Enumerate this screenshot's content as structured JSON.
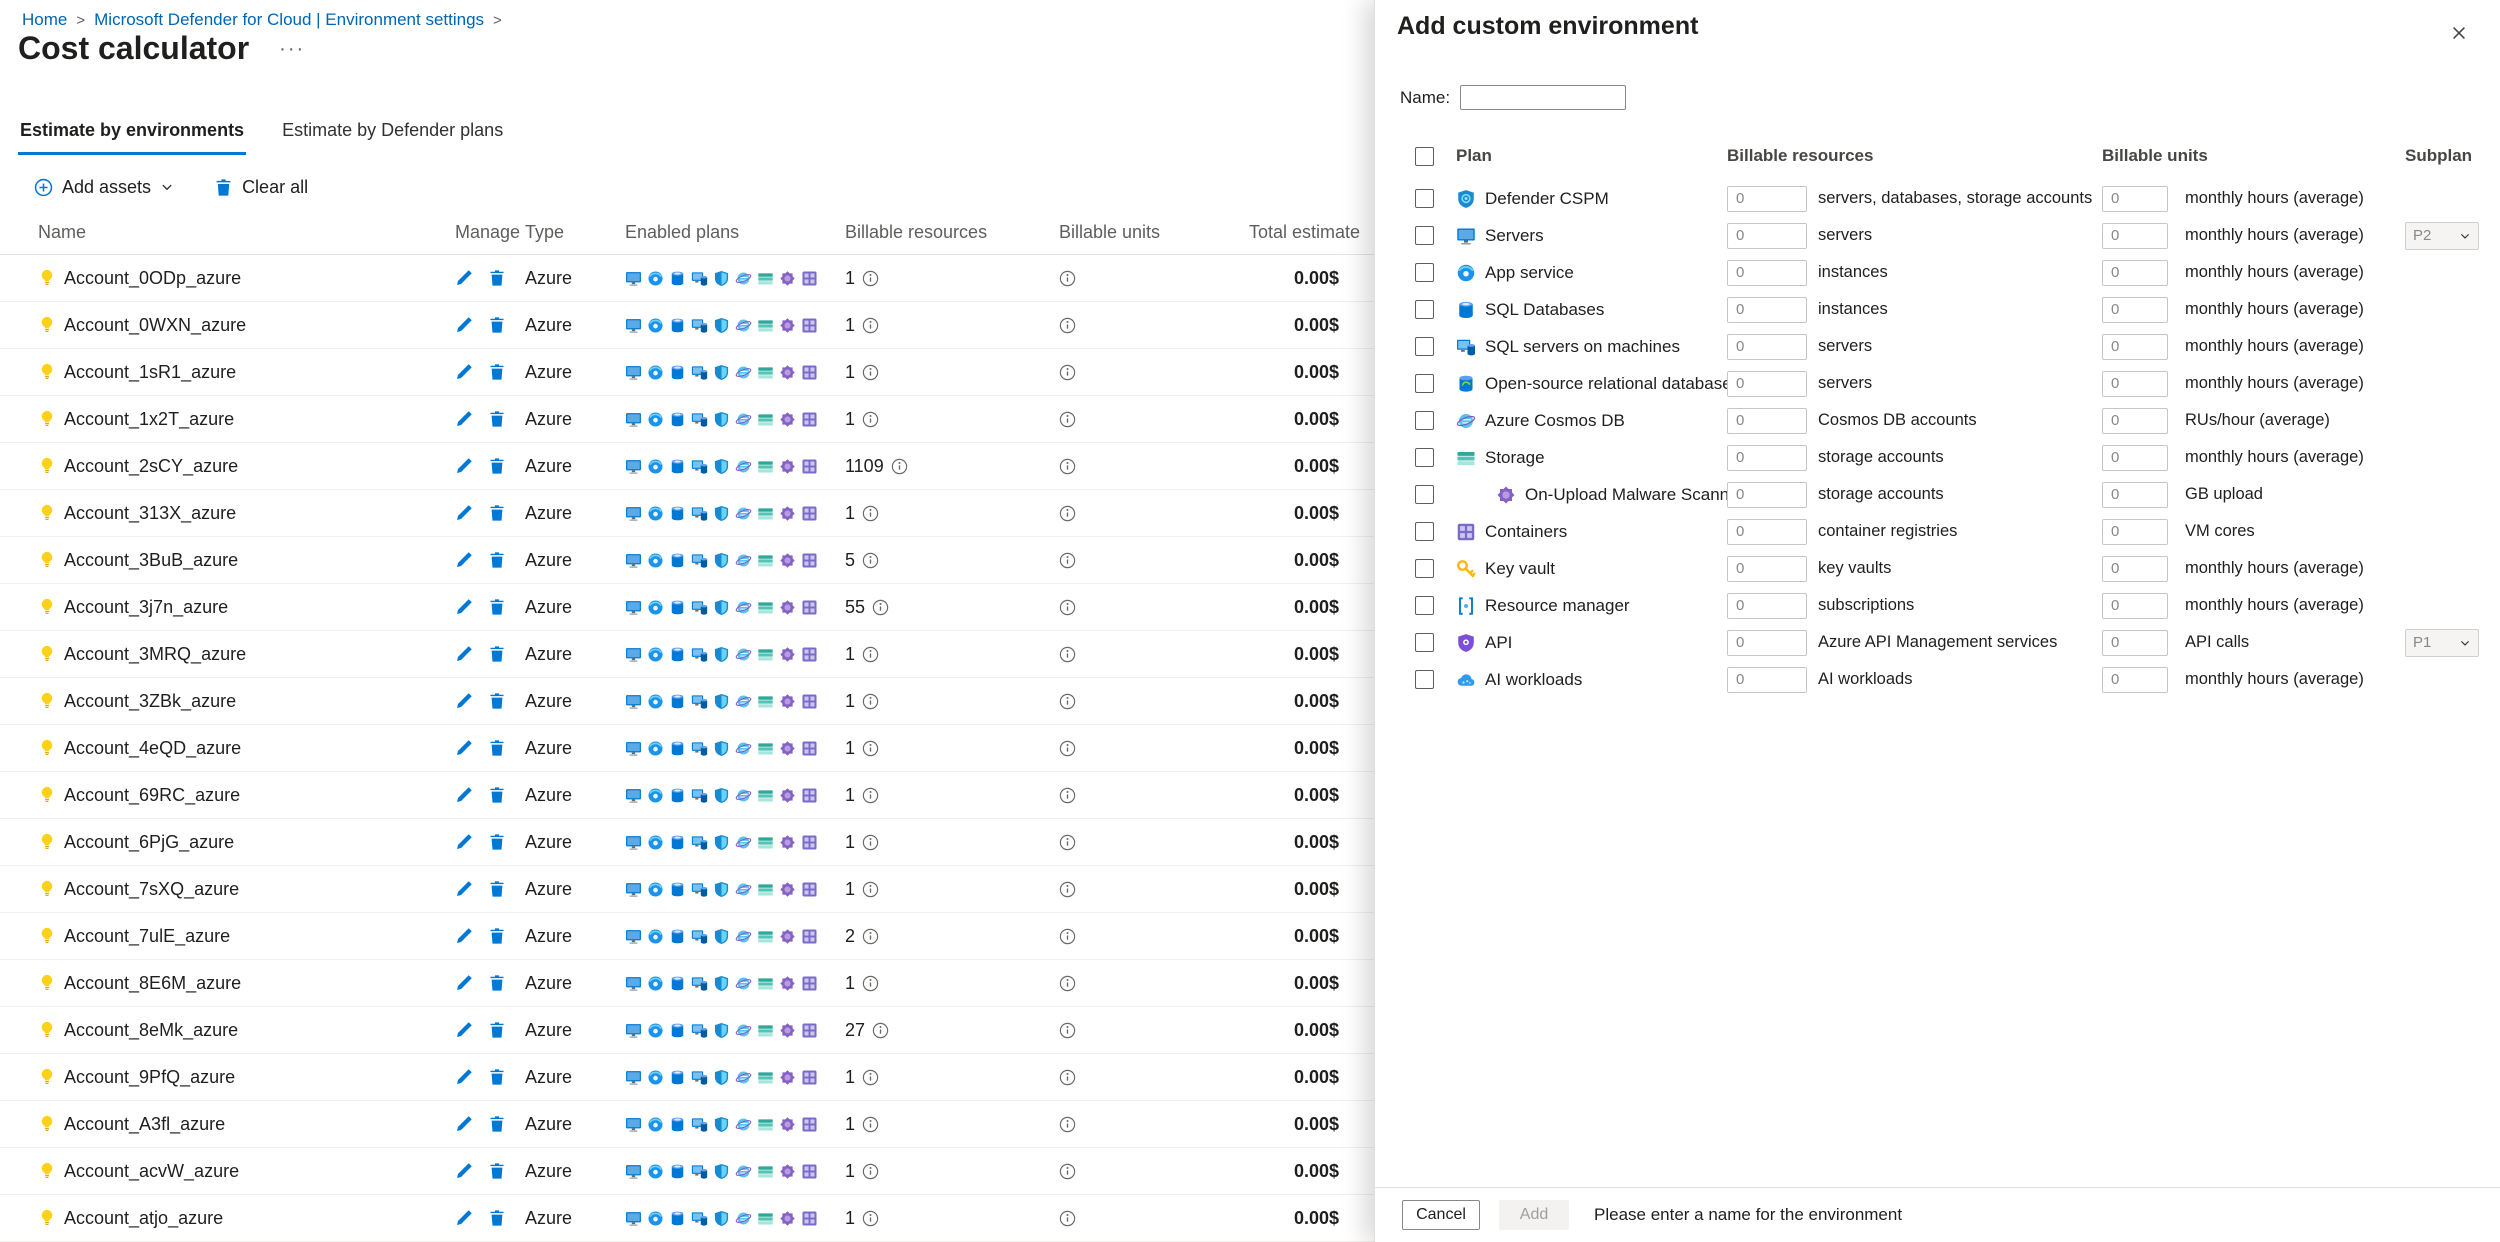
{
  "colors": {
    "accent": "#0078d4",
    "link": "#0065b3"
  },
  "breadcrumb": {
    "items": [
      "Home",
      "Microsoft Defender for Cloud | Environment settings"
    ],
    "separator": ">"
  },
  "page": {
    "title": "Cost calculator",
    "more_label": "···"
  },
  "tabs": [
    {
      "label": "Estimate by environments",
      "active": true
    },
    {
      "label": "Estimate by Defender plans",
      "active": false
    }
  ],
  "toolbar": {
    "add_assets": "Add assets",
    "clear_all": "Clear all"
  },
  "accounts_table": {
    "columns": [
      "Name",
      "Manage",
      "Type",
      "Enabled plans",
      "Billable resources",
      "Billable units",
      "Total estimate"
    ],
    "enabled_plan_icons": [
      "servers-icon",
      "app-service-icon",
      "sql-databases-icon",
      "sql-servers-on-machines-icon",
      "defender-shield-icon",
      "cosmos-db-icon",
      "storage-icon",
      "malware-scanning-icon",
      "containers-icon"
    ],
    "rows": [
      {
        "name": "Account_0ODp_azure",
        "type": "Azure",
        "billable_resources": "1",
        "total_estimate": "0.00$"
      },
      {
        "name": "Account_0WXN_azure",
        "type": "Azure",
        "billable_resources": "1",
        "total_estimate": "0.00$"
      },
      {
        "name": "Account_1sR1_azure",
        "type": "Azure",
        "billable_resources": "1",
        "total_estimate": "0.00$"
      },
      {
        "name": "Account_1x2T_azure",
        "type": "Azure",
        "billable_resources": "1",
        "total_estimate": "0.00$"
      },
      {
        "name": "Account_2sCY_azure",
        "type": "Azure",
        "billable_resources": "1109",
        "total_estimate": "0.00$"
      },
      {
        "name": "Account_313X_azure",
        "type": "Azure",
        "billable_resources": "1",
        "total_estimate": "0.00$"
      },
      {
        "name": "Account_3BuB_azure",
        "type": "Azure",
        "billable_resources": "5",
        "total_estimate": "0.00$"
      },
      {
        "name": "Account_3j7n_azure",
        "type": "Azure",
        "billable_resources": "55",
        "total_estimate": "0.00$"
      },
      {
        "name": "Account_3MRQ_azure",
        "type": "Azure",
        "billable_resources": "1",
        "total_estimate": "0.00$"
      },
      {
        "name": "Account_3ZBk_azure",
        "type": "Azure",
        "billable_resources": "1",
        "total_estimate": "0.00$"
      },
      {
        "name": "Account_4eQD_azure",
        "type": "Azure",
        "billable_resources": "1",
        "total_estimate": "0.00$"
      },
      {
        "name": "Account_69RC_azure",
        "type": "Azure",
        "billable_resources": "1",
        "total_estimate": "0.00$"
      },
      {
        "name": "Account_6PjG_azure",
        "type": "Azure",
        "billable_resources": "1",
        "total_estimate": "0.00$"
      },
      {
        "name": "Account_7sXQ_azure",
        "type": "Azure",
        "billable_resources": "1",
        "total_estimate": "0.00$"
      },
      {
        "name": "Account_7ulE_azure",
        "type": "Azure",
        "billable_resources": "2",
        "total_estimate": "0.00$"
      },
      {
        "name": "Account_8E6M_azure",
        "type": "Azure",
        "billable_resources": "1",
        "total_estimate": "0.00$"
      },
      {
        "name": "Account_8eMk_azure",
        "type": "Azure",
        "billable_resources": "27",
        "total_estimate": "0.00$"
      },
      {
        "name": "Account_9PfQ_azure",
        "type": "Azure",
        "billable_resources": "1",
        "total_estimate": "0.00$"
      },
      {
        "name": "Account_A3fl_azure",
        "type": "Azure",
        "billable_resources": "1",
        "total_estimate": "0.00$"
      },
      {
        "name": "Account_acvW_azure",
        "type": "Azure",
        "billable_resources": "1",
        "total_estimate": "0.00$"
      },
      {
        "name": "Account_atjo_azure",
        "type": "Azure",
        "billable_resources": "1",
        "total_estimate": "0.00$"
      }
    ]
  },
  "panel": {
    "title": "Add custom environment",
    "name_label": "Name:",
    "name_value": "",
    "columns": {
      "plan": "Plan",
      "billable_resources": "Billable resources",
      "billable_units": "Billable units",
      "subplan": "Subplan"
    },
    "plans": [
      {
        "name": "Defender CSPM",
        "icon": "defender-cspm-icon",
        "resources_value": "0",
        "resources_unit": "servers, databases, storage accounts",
        "units_value": "0",
        "units_unit": "monthly hours (average)",
        "subplan": "",
        "indent": false
      },
      {
        "name": "Servers",
        "icon": "servers-icon",
        "resources_value": "0",
        "resources_unit": "servers",
        "units_value": "0",
        "units_unit": "monthly hours (average)",
        "subplan": "P2",
        "indent": false
      },
      {
        "name": "App service",
        "icon": "app-service-icon",
        "resources_value": "0",
        "resources_unit": "instances",
        "units_value": "0",
        "units_unit": "monthly hours (average)",
        "subplan": "",
        "indent": false
      },
      {
        "name": "SQL Databases",
        "icon": "sql-databases-icon",
        "resources_value": "0",
        "resources_unit": "instances",
        "units_value": "0",
        "units_unit": "monthly hours (average)",
        "subplan": "",
        "indent": false
      },
      {
        "name": "SQL servers on machines",
        "icon": "sql-servers-on-machines-icon",
        "resources_value": "0",
        "resources_unit": "servers",
        "units_value": "0",
        "units_unit": "monthly hours (average)",
        "subplan": "",
        "indent": false
      },
      {
        "name": "Open-source relational databases",
        "icon": "open-source-db-icon",
        "resources_value": "0",
        "resources_unit": "servers",
        "units_value": "0",
        "units_unit": "monthly hours (average)",
        "subplan": "",
        "indent": false
      },
      {
        "name": "Azure Cosmos DB",
        "icon": "cosmos-db-icon",
        "resources_value": "0",
        "resources_unit": "Cosmos DB accounts",
        "units_value": "0",
        "units_unit": "RUs/hour (average)",
        "subplan": "",
        "indent": false
      },
      {
        "name": "Storage",
        "icon": "storage-icon",
        "resources_value": "0",
        "resources_unit": "storage accounts",
        "units_value": "0",
        "units_unit": "monthly hours (average)",
        "subplan": "",
        "indent": false
      },
      {
        "name": "On-Upload Malware Scanning",
        "icon": "malware-scanning-icon",
        "resources_value": "0",
        "resources_unit": "storage accounts",
        "units_value": "0",
        "units_unit": "GB upload",
        "subplan": "",
        "indent": true
      },
      {
        "name": "Containers",
        "icon": "containers-icon",
        "resources_value": "0",
        "resources_unit": "container registries",
        "units_value": "0",
        "units_unit": "VM cores",
        "subplan": "",
        "indent": false
      },
      {
        "name": "Key vault",
        "icon": "key-vault-icon",
        "resources_value": "0",
        "resources_unit": "key vaults",
        "units_value": "0",
        "units_unit": "monthly hours (average)",
        "subplan": "",
        "indent": false
      },
      {
        "name": "Resource manager",
        "icon": "resource-manager-icon",
        "resources_value": "0",
        "resources_unit": "subscriptions",
        "units_value": "0",
        "units_unit": "monthly hours (average)",
        "subplan": "",
        "indent": false
      },
      {
        "name": "API",
        "icon": "api-icon",
        "resources_value": "0",
        "resources_unit": "Azure API Management services",
        "units_value": "0",
        "units_unit": "API calls",
        "subplan": "P1",
        "indent": false
      },
      {
        "name": "AI workloads",
        "icon": "ai-workloads-icon",
        "resources_value": "0",
        "resources_unit": "AI workloads",
        "units_value": "0",
        "units_unit": "monthly hours (average)",
        "subplan": "",
        "indent": false
      }
    ],
    "footer": {
      "cancel_label": "Cancel",
      "add_label": "Add",
      "message": "Please enter a name for the environment"
    }
  }
}
